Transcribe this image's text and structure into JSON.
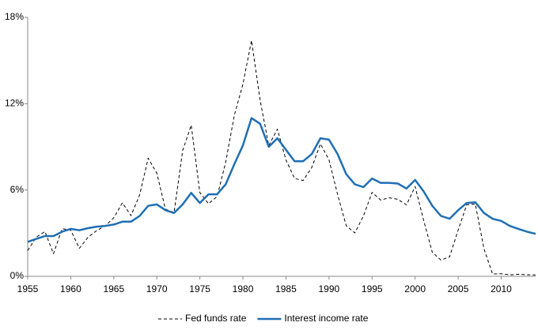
{
  "chart_data": {
    "type": "line",
    "x": [
      1955,
      1956,
      1957,
      1958,
      1959,
      1960,
      1961,
      1962,
      1963,
      1964,
      1965,
      1966,
      1967,
      1968,
      1969,
      1970,
      1971,
      1972,
      1973,
      1974,
      1975,
      1976,
      1977,
      1978,
      1979,
      1980,
      1981,
      1982,
      1983,
      1984,
      1985,
      1986,
      1987,
      1988,
      1989,
      1990,
      1991,
      1992,
      1993,
      1994,
      1995,
      1996,
      1997,
      1998,
      1999,
      2000,
      2001,
      2002,
      2003,
      2004,
      2005,
      2006,
      2007,
      2008,
      2009,
      2010,
      2011,
      2012,
      2013,
      2014
    ],
    "series": [
      {
        "name": "Fed funds rate",
        "color": "#000000",
        "dash": true,
        "values": [
          1.79,
          2.73,
          3.11,
          1.57,
          3.31,
          3.21,
          1.95,
          2.71,
          3.18,
          3.5,
          4.07,
          5.11,
          4.22,
          5.66,
          8.21,
          7.17,
          4.67,
          4.44,
          8.74,
          10.51,
          5.82,
          5.05,
          5.54,
          7.94,
          11.2,
          13.35,
          16.39,
          12.24,
          9.09,
          10.23,
          8.1,
          6.8,
          6.66,
          7.57,
          9.21,
          8.1,
          5.69,
          3.52,
          3.02,
          4.2,
          5.84,
          5.3,
          5.46,
          5.35,
          4.97,
          6.24,
          3.88,
          1.67,
          1.13,
          1.35,
          3.22,
          4.97,
          5.02,
          1.92,
          0.16,
          0.18,
          0.1,
          0.14,
          0.11,
          0.09
        ]
      },
      {
        "name": "Interest income rate",
        "color": "#1f6fb5",
        "dash": false,
        "values": [
          2.4,
          2.6,
          2.8,
          2.8,
          3.1,
          3.3,
          3.2,
          3.35,
          3.45,
          3.5,
          3.6,
          3.8,
          3.8,
          4.2,
          4.9,
          5.0,
          4.6,
          4.4,
          5.0,
          5.8,
          5.1,
          5.7,
          5.7,
          6.4,
          7.8,
          9.1,
          11.0,
          10.6,
          9.0,
          9.6,
          8.8,
          8.0,
          8.0,
          8.5,
          9.6,
          9.5,
          8.5,
          7.1,
          6.4,
          6.2,
          6.8,
          6.5,
          6.5,
          6.45,
          6.1,
          6.7,
          5.9,
          4.9,
          4.2,
          4.0,
          4.6,
          5.1,
          5.15,
          4.4,
          4.0,
          3.85,
          3.5,
          3.3,
          3.1,
          2.95
        ]
      }
    ],
    "xlim": [
      1955,
      2014
    ],
    "xticks": [
      1955,
      1960,
      1965,
      1970,
      1975,
      1980,
      1985,
      1990,
      1995,
      2000,
      2005,
      2010
    ],
    "ylim": [
      0,
      18
    ],
    "yticks": [
      {
        "value": 0,
        "label": "0%"
      },
      {
        "value": 6,
        "label": "6%"
      },
      {
        "value": 12,
        "label": "12%"
      },
      {
        "value": 18,
        "label": "18%"
      }
    ],
    "legend": "bottom"
  }
}
